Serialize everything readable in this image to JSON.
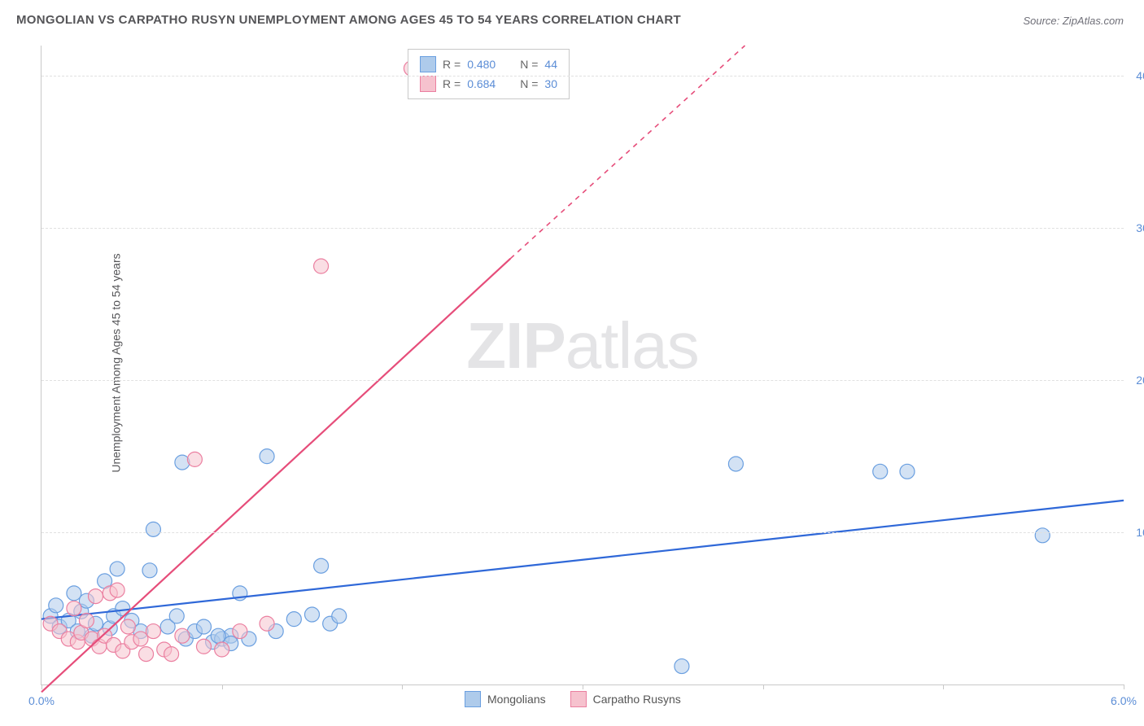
{
  "title": "MONGOLIAN VS CARPATHO RUSYN UNEMPLOYMENT AMONG AGES 45 TO 54 YEARS CORRELATION CHART",
  "source": "Source: ZipAtlas.com",
  "ylabel": "Unemployment Among Ages 45 to 54 years",
  "watermark_bold": "ZIP",
  "watermark_light": "atlas",
  "chart": {
    "type": "scatter",
    "xlim": [
      0.0,
      6.0
    ],
    "ylim": [
      0.0,
      42.0
    ],
    "xticks": [
      0.0,
      1.0,
      2.0,
      3.0,
      4.0,
      5.0,
      6.0
    ],
    "xtick_labels": {
      "0": "0.0%",
      "6": "6.0%"
    },
    "yticks": [
      10.0,
      20.0,
      30.0,
      40.0
    ],
    "ytick_labels": [
      "10.0%",
      "20.0%",
      "30.0%",
      "40.0%"
    ],
    "grid_color": "#e0e0e0",
    "background_color": "#ffffff",
    "axis_color": "#c9c9c9",
    "tick_label_color": "#5b8dd6"
  },
  "series": [
    {
      "name": "Mongolians",
      "color_fill": "#aecbeb",
      "color_stroke": "#6a9fe0",
      "color_line": "#2f68d8",
      "marker_radius": 9,
      "fill_opacity": 0.55,
      "R": "0.480",
      "N": "44",
      "trend": {
        "x1": 0.0,
        "y1": 4.3,
        "x2": 6.0,
        "y2": 12.1,
        "dashed": false
      },
      "points": [
        [
          0.05,
          4.5
        ],
        [
          0.08,
          5.2
        ],
        [
          0.1,
          3.8
        ],
        [
          0.15,
          4.2
        ],
        [
          0.18,
          6.0
        ],
        [
          0.2,
          3.5
        ],
        [
          0.22,
          4.8
        ],
        [
          0.25,
          5.5
        ],
        [
          0.28,
          3.2
        ],
        [
          0.3,
          4.0
        ],
        [
          0.35,
          6.8
        ],
        [
          0.38,
          3.7
        ],
        [
          0.4,
          4.5
        ],
        [
          0.42,
          7.6
        ],
        [
          0.45,
          5.0
        ],
        [
          0.5,
          4.2
        ],
        [
          0.55,
          3.5
        ],
        [
          0.6,
          7.5
        ],
        [
          0.62,
          10.2
        ],
        [
          0.7,
          3.8
        ],
        [
          0.75,
          4.5
        ],
        [
          0.8,
          3.0
        ],
        [
          0.85,
          3.5
        ],
        [
          0.9,
          3.8
        ],
        [
          0.95,
          2.8
        ],
        [
          1.0,
          3.0
        ],
        [
          1.05,
          3.2
        ],
        [
          1.1,
          6.0
        ],
        [
          1.15,
          3.0
        ],
        [
          1.25,
          15.0
        ],
        [
          1.3,
          3.5
        ],
        [
          1.4,
          4.3
        ],
        [
          1.5,
          4.6
        ],
        [
          1.55,
          7.8
        ],
        [
          1.6,
          4.0
        ],
        [
          1.65,
          4.5
        ],
        [
          3.55,
          1.2
        ],
        [
          3.85,
          14.5
        ],
        [
          4.65,
          14.0
        ],
        [
          4.8,
          14.0
        ],
        [
          5.55,
          9.8
        ],
        [
          0.78,
          14.6
        ],
        [
          0.98,
          3.2
        ],
        [
          1.05,
          2.7
        ]
      ]
    },
    {
      "name": "Carpatho Rusyns",
      "color_fill": "#f6c2ce",
      "color_stroke": "#eb7fa0",
      "color_line": "#e64d7a",
      "marker_radius": 9,
      "fill_opacity": 0.55,
      "R": "0.684",
      "N": "30",
      "trend": {
        "x1": 0.0,
        "y1": -0.5,
        "x2": 2.6,
        "y2": 28.0,
        "dashed_after_x": 2.6,
        "dashed_to_x": 3.9,
        "dashed_to_y": 42.0
      },
      "points": [
        [
          0.05,
          4.0
        ],
        [
          0.1,
          3.5
        ],
        [
          0.15,
          3.0
        ],
        [
          0.18,
          5.0
        ],
        [
          0.2,
          2.8
        ],
        [
          0.22,
          3.4
        ],
        [
          0.25,
          4.2
        ],
        [
          0.28,
          3.0
        ],
        [
          0.3,
          5.8
        ],
        [
          0.32,
          2.5
        ],
        [
          0.35,
          3.2
        ],
        [
          0.38,
          6.0
        ],
        [
          0.4,
          2.6
        ],
        [
          0.42,
          6.2
        ],
        [
          0.45,
          2.2
        ],
        [
          0.48,
          3.8
        ],
        [
          0.5,
          2.8
        ],
        [
          0.55,
          3.0
        ],
        [
          0.58,
          2.0
        ],
        [
          0.62,
          3.5
        ],
        [
          0.68,
          2.3
        ],
        [
          0.72,
          2.0
        ],
        [
          0.78,
          3.2
        ],
        [
          0.85,
          14.8
        ],
        [
          0.9,
          2.5
        ],
        [
          1.0,
          2.3
        ],
        [
          1.1,
          3.5
        ],
        [
          1.25,
          4.0
        ],
        [
          1.55,
          27.5
        ],
        [
          2.05,
          40.5
        ]
      ]
    }
  ],
  "legend_top": {
    "r_label": "R =",
    "n_label": "N ="
  },
  "legend_bottom": [
    {
      "label": "Mongolians",
      "fill": "#aecbeb",
      "stroke": "#6a9fe0"
    },
    {
      "label": "Carpatho Rusyns",
      "fill": "#f6c2ce",
      "stroke": "#eb7fa0"
    }
  ]
}
